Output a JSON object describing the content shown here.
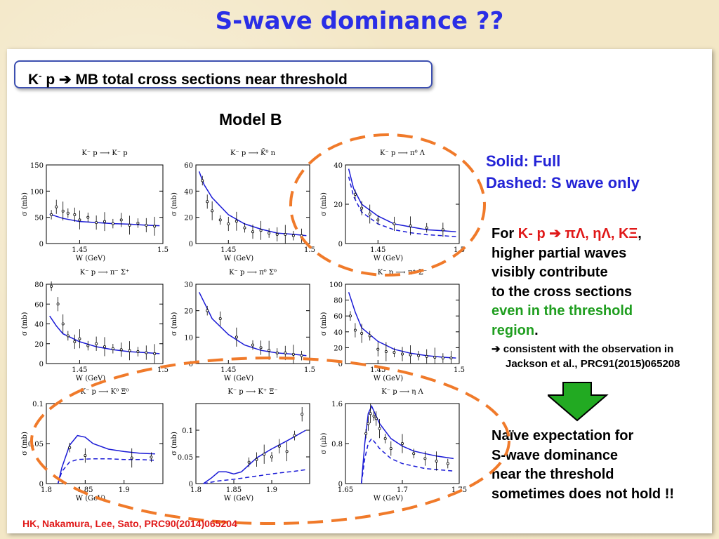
{
  "title": "S-wave dominance ??",
  "subtitle": {
    "k": "K",
    "minus": "-",
    "rest": " p ➔ MB total cross sections near threshold"
  },
  "model_label": "Model B",
  "legend": {
    "solid": "Solid: Full",
    "dashed": "Dashed: S wave only"
  },
  "note": {
    "for": "For ",
    "reaction": "K- p ➔ πΛ, ηΛ, KΞ",
    "comma": ",",
    "line2": "higher partial waves",
    "line3": "visibly contribute",
    "line4": "to the cross sections",
    "line5": "even in the threshold",
    "line6": "region",
    "dot": "."
  },
  "sub_note": {
    "line1": "➔ consistent with the observation in",
    "line2": "Jackson et al., PRC91(2015)065208"
  },
  "conclusion": {
    "line1": "Naïve expectation for",
    "line2": "S-wave dominance",
    "line3": "near the threshold",
    "line4": "sometimes does not hold !!"
  },
  "citation": "HK, Nakamura, Lee, Sato, PRC90(2014)065204",
  "colors": {
    "curve": "#1a1ad6",
    "highlight": "#f07a2a",
    "arrow": "#22aa22",
    "title": "#2a2ee6"
  },
  "icons": {
    "arrow": "down-arrow-icon"
  },
  "chart_data": [
    {
      "type": "line",
      "title": "K⁻ p ⟶ K⁻ p",
      "xlabel": "W (GeV)",
      "ylabel": "σ (mb)",
      "xlim": [
        1.43,
        1.5
      ],
      "ylim": [
        0,
        150
      ],
      "xticks": [
        1.45,
        1.5
      ],
      "yticks": [
        0,
        50,
        100,
        150
      ],
      "series": [
        {
          "name": "Full",
          "style": "solid",
          "x": [
            1.432,
            1.44,
            1.45,
            1.46,
            1.47,
            1.48,
            1.49,
            1.498
          ],
          "y": [
            56,
            48,
            42,
            40,
            38,
            37,
            35,
            34
          ]
        }
      ],
      "points": {
        "x": [
          1.433,
          1.436,
          1.44,
          1.443,
          1.447,
          1.45,
          1.455,
          1.46,
          1.465,
          1.47,
          1.475,
          1.48,
          1.485,
          1.49,
          1.495
        ],
        "y": [
          55,
          70,
          62,
          58,
          55,
          45,
          50,
          40,
          42,
          38,
          45,
          35,
          39,
          35,
          33
        ]
      }
    },
    {
      "type": "line",
      "title": "K⁻ p ⟶ K̄⁰ n",
      "xlabel": "W (GeV)",
      "ylabel": "σ (mb)",
      "xlim": [
        1.43,
        1.5
      ],
      "ylim": [
        0,
        60
      ],
      "xticks": [
        1.45,
        1.5
      ],
      "yticks": [
        0,
        20,
        40,
        60
      ],
      "series": [
        {
          "name": "Full",
          "style": "solid",
          "x": [
            1.432,
            1.435,
            1.44,
            1.45,
            1.46,
            1.47,
            1.48,
            1.49,
            1.498
          ],
          "y": [
            55,
            45,
            35,
            22,
            15,
            11,
            8,
            7,
            6
          ]
        }
      ],
      "points": {
        "x": [
          1.434,
          1.437,
          1.44,
          1.445,
          1.45,
          1.455,
          1.46,
          1.465,
          1.47,
          1.475,
          1.48,
          1.485,
          1.49,
          1.495
        ],
        "y": [
          48,
          32,
          25,
          18,
          15,
          17,
          12,
          9,
          10,
          8,
          7,
          7,
          6,
          6
        ]
      }
    },
    {
      "type": "line",
      "title": "K⁻ p ⟶ π⁰ Λ",
      "xlabel": "W (GeV)",
      "ylabel": "σ (mb)",
      "xlim": [
        1.43,
        1.5
      ],
      "ylim": [
        0,
        40
      ],
      "xticks": [
        1.45,
        1.5
      ],
      "yticks": [
        0,
        20,
        40
      ],
      "series": [
        {
          "name": "Full",
          "style": "solid",
          "x": [
            1.432,
            1.435,
            1.44,
            1.45,
            1.46,
            1.47,
            1.48,
            1.49,
            1.498
          ],
          "y": [
            38,
            28,
            20,
            14,
            10,
            8.5,
            7,
            6.5,
            6
          ]
        },
        {
          "name": "S wave",
          "style": "dashed",
          "x": [
            1.432,
            1.435,
            1.44,
            1.45,
            1.46,
            1.47,
            1.48,
            1.49,
            1.498
          ],
          "y": [
            34,
            24,
            16,
            10,
            7,
            5.5,
            4.5,
            4,
            3.5
          ]
        }
      ],
      "points": {
        "x": [
          1.436,
          1.44,
          1.445,
          1.45,
          1.46,
          1.47,
          1.48,
          1.49
        ],
        "y": [
          25,
          18,
          15,
          12,
          10,
          9,
          8,
          7
        ]
      }
    },
    {
      "type": "line",
      "title": "K⁻ p ⟶ π⁻ Σ⁺",
      "xlabel": "W (GeV)",
      "ylabel": "σ (mb)",
      "xlim": [
        1.43,
        1.5
      ],
      "ylim": [
        0,
        80
      ],
      "xticks": [
        1.45,
        1.5
      ],
      "yticks": [
        0,
        20,
        40,
        60,
        80
      ],
      "series": [
        {
          "name": "Full",
          "style": "solid",
          "x": [
            1.432,
            1.436,
            1.44,
            1.45,
            1.46,
            1.47,
            1.48,
            1.49,
            1.498
          ],
          "y": [
            48,
            38,
            30,
            22,
            17,
            14,
            12,
            11,
            10
          ]
        }
      ],
      "points": {
        "x": [
          1.433,
          1.437,
          1.44,
          1.443,
          1.447,
          1.45,
          1.455,
          1.46,
          1.465,
          1.47,
          1.475,
          1.48,
          1.485,
          1.49,
          1.495
        ],
        "y": [
          78,
          60,
          40,
          28,
          22,
          25,
          18,
          20,
          17,
          15,
          14,
          13,
          12,
          11,
          10
        ]
      }
    },
    {
      "type": "line",
      "title": "K⁻ p ⟶ π⁰ Σ⁰",
      "xlabel": "W (GeV)",
      "ylabel": "σ (mb)",
      "xlim": [
        1.43,
        1.5
      ],
      "ylim": [
        0,
        30
      ],
      "xticks": [
        1.45,
        1.5
      ],
      "yticks": [
        0,
        10,
        20,
        30
      ],
      "series": [
        {
          "name": "Full",
          "style": "solid",
          "x": [
            1.432,
            1.436,
            1.44,
            1.45,
            1.46,
            1.47,
            1.48,
            1.49,
            1.498
          ],
          "y": [
            27,
            22,
            17,
            11,
            7,
            5,
            4,
            3.5,
            3
          ]
        }
      ],
      "points": {
        "x": [
          1.437,
          1.445,
          1.455,
          1.465,
          1.47,
          1.475,
          1.48,
          1.485,
          1.49,
          1.495
        ],
        "y": [
          20,
          17,
          10,
          7,
          6,
          5,
          4,
          4,
          3.5,
          3
        ]
      }
    },
    {
      "type": "line",
      "title": "K⁻ p ⟶ π⁺ Σ⁻",
      "xlabel": "W (GeV)",
      "ylabel": "σ (mb)",
      "xlim": [
        1.43,
        1.5
      ],
      "ylim": [
        0,
        100
      ],
      "xticks": [
        1.45,
        1.5
      ],
      "yticks": [
        0,
        20,
        40,
        60,
        80,
        100
      ],
      "series": [
        {
          "name": "Full",
          "style": "solid",
          "x": [
            1.432,
            1.436,
            1.44,
            1.45,
            1.46,
            1.47,
            1.48,
            1.49,
            1.498
          ],
          "y": [
            90,
            65,
            45,
            28,
            18,
            13,
            10,
            8,
            7
          ]
        }
      ],
      "points": {
        "x": [
          1.433,
          1.436,
          1.44,
          1.445,
          1.45,
          1.455,
          1.46,
          1.465,
          1.47,
          1.475,
          1.48,
          1.485,
          1.49,
          1.495
        ],
        "y": [
          60,
          42,
          38,
          35,
          18,
          15,
          14,
          12,
          11,
          10,
          9,
          8,
          7,
          7
        ]
      }
    },
    {
      "type": "line",
      "title": "K⁻ p ⟶ K⁰ Ξ⁰",
      "xlabel": "W (GeV)",
      "ylabel": "σ (mb)",
      "xlim": [
        1.8,
        1.95
      ],
      "ylim": [
        0,
        0.1
      ],
      "xticks": [
        1.8,
        1.85,
        1.9
      ],
      "yticks": [
        0,
        0.05,
        0.1
      ],
      "series": [
        {
          "name": "Full",
          "style": "solid",
          "x": [
            1.815,
            1.82,
            1.83,
            1.84,
            1.85,
            1.86,
            1.88,
            1.9,
            1.92,
            1.94
          ],
          "y": [
            0.0,
            0.02,
            0.048,
            0.06,
            0.058,
            0.05,
            0.043,
            0.04,
            0.038,
            0.037
          ]
        },
        {
          "name": "S wave",
          "style": "dashed",
          "x": [
            1.815,
            1.82,
            1.83,
            1.84,
            1.86,
            1.88,
            1.9,
            1.92,
            1.94
          ],
          "y": [
            0.0,
            0.015,
            0.027,
            0.03,
            0.031,
            0.031,
            0.03,
            0.03,
            0.029
          ]
        }
      ],
      "points": {
        "x": [
          1.83,
          1.85,
          1.91,
          1.935
        ],
        "y": [
          0.045,
          0.035,
          0.032,
          0.033
        ]
      }
    },
    {
      "type": "line",
      "title": "K⁻ p ⟶ K⁺ Ξ⁻",
      "xlabel": "W (GeV)",
      "ylabel": "σ (mb)",
      "xlim": [
        1.8,
        1.95
      ],
      "ylim": [
        0,
        0.15
      ],
      "xticks": [
        1.8,
        1.85,
        1.9
      ],
      "yticks": [
        0,
        0.05,
        0.1
      ],
      "series": [
        {
          "name": "Full",
          "style": "solid",
          "x": [
            1.81,
            1.82,
            1.83,
            1.84,
            1.85,
            1.86,
            1.87,
            1.88,
            1.9,
            1.92,
            1.945
          ],
          "y": [
            0.0,
            0.01,
            0.022,
            0.022,
            0.018,
            0.022,
            0.035,
            0.048,
            0.065,
            0.08,
            0.1
          ]
        },
        {
          "name": "S wave",
          "style": "dashed",
          "x": [
            1.81,
            1.83,
            1.85,
            1.87,
            1.89,
            1.91,
            1.93,
            1.945
          ],
          "y": [
            0.0,
            0.005,
            0.008,
            0.012,
            0.016,
            0.02,
            0.023,
            0.026
          ]
        }
      ],
      "points": {
        "x": [
          1.87,
          1.88,
          1.89,
          1.9,
          1.91,
          1.92,
          1.93,
          1.94
        ],
        "y": [
          0.04,
          0.045,
          0.055,
          0.05,
          0.07,
          0.06,
          0.09,
          0.13
        ]
      }
    },
    {
      "type": "line",
      "title": "K⁻ p ⟶ η Λ",
      "xlabel": "W (GeV)",
      "ylabel": "σ (μb)",
      "xlim": [
        1.65,
        1.75
      ],
      "ylim": [
        0,
        1.6
      ],
      "xticks": [
        1.65,
        1.7,
        1.75
      ],
      "yticks": [
        0,
        0.8,
        1.6
      ],
      "series": [
        {
          "name": "Full",
          "style": "solid",
          "x": [
            1.664,
            1.667,
            1.67,
            1.673,
            1.676,
            1.68,
            1.69,
            1.7,
            1.71,
            1.72,
            1.73,
            1.745
          ],
          "y": [
            0.0,
            0.8,
            1.4,
            1.55,
            1.4,
            1.2,
            0.9,
            0.75,
            0.65,
            0.6,
            0.55,
            0.5
          ]
        },
        {
          "name": "S wave",
          "style": "dashed",
          "x": [
            1.664,
            1.667,
            1.67,
            1.673,
            1.676,
            1.68,
            1.69,
            1.7,
            1.71,
            1.72,
            1.73,
            1.745
          ],
          "y": [
            0.0,
            0.5,
            0.8,
            0.9,
            0.82,
            0.7,
            0.5,
            0.4,
            0.35,
            0.3,
            0.28,
            0.25
          ]
        }
      ],
      "points": {
        "x": [
          1.668,
          1.67,
          1.672,
          1.675,
          1.677,
          1.68,
          1.685,
          1.69,
          1.7,
          1.71,
          1.72,
          1.73,
          1.74
        ],
        "y": [
          1.0,
          1.2,
          1.4,
          1.35,
          1.3,
          1.1,
          0.9,
          0.7,
          0.8,
          0.6,
          0.5,
          0.45,
          0.4
        ]
      }
    }
  ]
}
